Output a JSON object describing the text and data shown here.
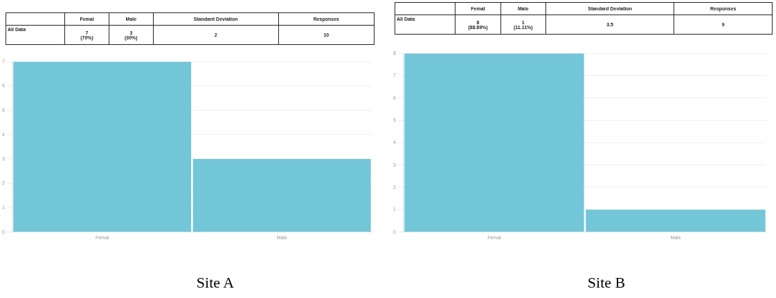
{
  "chart_data": [
    {
      "type": "bar",
      "title": "Site A",
      "categories": [
        "Femal",
        "Male"
      ],
      "values": [
        7,
        3
      ],
      "color": "#72c6d8",
      "annotations": [
        "All Data",
        "7\n(70%)",
        "3\n(30%)",
        "Standard Deviation",
        "2",
        "Responses",
        "10"
      ],
      "ylim": [
        0,
        7
      ],
      "yticks": [
        0,
        1,
        2,
        3,
        4,
        5,
        6,
        7
      ],
      "grid": "y",
      "legend": false
    },
    {
      "type": "bar",
      "title": "Site B",
      "categories": [
        "Femal",
        "Male"
      ],
      "values": [
        8,
        1
      ],
      "color": "#72c6d8",
      "annotations": [
        "All Data",
        "8\n(88.89%)",
        "1\n(11.11%)",
        "Standard Deviation",
        "3.5",
        "Responses",
        "9"
      ],
      "ylim": [
        0,
        8
      ],
      "yticks": [
        0,
        1,
        2,
        3,
        4,
        5,
        6,
        7,
        8
      ],
      "grid": "y",
      "legend": false
    }
  ]
}
